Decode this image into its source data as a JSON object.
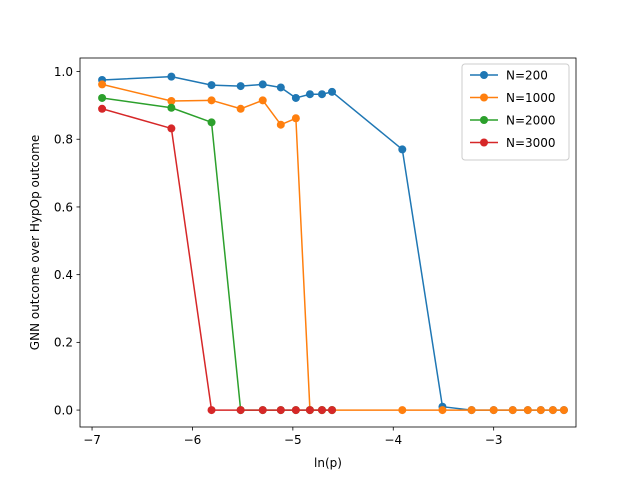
{
  "chart_data": {
    "type": "line",
    "title": "",
    "xlabel": "ln(p)",
    "ylabel": "GNN outcome over HypOp outcome",
    "xlim": [
      -7.12,
      -2.18
    ],
    "ylim": [
      -0.05,
      1.04
    ],
    "x_ticks": [
      -7,
      -6,
      -5,
      -4,
      -3
    ],
    "x_tick_labels": [
      "−7",
      "−6",
      "−5",
      "−4",
      "−3"
    ],
    "y_ticks": [
      0.0,
      0.2,
      0.4,
      0.6,
      0.8,
      1.0
    ],
    "y_tick_labels": [
      "0.0",
      "0.2",
      "0.4",
      "0.6",
      "0.8",
      "1.0"
    ],
    "grid": false,
    "legend_position": "top-right",
    "marker": "circle",
    "series": [
      {
        "name": "N=200",
        "color": "#1f77b4",
        "points": [
          [
            -6.9,
            0.975
          ],
          [
            -6.21,
            0.985
          ],
          [
            -5.81,
            0.96
          ],
          [
            -5.52,
            0.957
          ],
          [
            -5.3,
            0.962
          ],
          [
            -5.12,
            0.953
          ],
          [
            -4.97,
            0.922
          ],
          [
            -4.83,
            0.933
          ],
          [
            -4.71,
            0.933
          ],
          [
            -4.61,
            0.94
          ],
          [
            -3.91,
            0.77
          ],
          [
            -3.51,
            0.01
          ],
          [
            -3.22,
            0.0
          ],
          [
            -3.0,
            0.0
          ],
          [
            -2.81,
            0.0
          ],
          [
            -2.66,
            0.0
          ],
          [
            -2.53,
            0.0
          ],
          [
            -2.41,
            0.0
          ],
          [
            -2.3,
            0.0
          ]
        ]
      },
      {
        "name": "N=1000",
        "color": "#ff7f0e",
        "points": [
          [
            -6.9,
            0.962
          ],
          [
            -6.21,
            0.913
          ],
          [
            -5.81,
            0.915
          ],
          [
            -5.52,
            0.89
          ],
          [
            -5.3,
            0.915
          ],
          [
            -5.12,
            0.843
          ],
          [
            -4.97,
            0.862
          ],
          [
            -4.83,
            0.0
          ],
          [
            -4.71,
            0.0
          ],
          [
            -4.61,
            0.0
          ],
          [
            -3.91,
            0.0
          ],
          [
            -3.51,
            0.0
          ],
          [
            -3.22,
            0.0
          ],
          [
            -3.0,
            0.0
          ],
          [
            -2.81,
            0.0
          ],
          [
            -2.66,
            0.0
          ],
          [
            -2.53,
            0.0
          ],
          [
            -2.41,
            0.0
          ],
          [
            -2.3,
            0.0
          ]
        ]
      },
      {
        "name": "N=2000",
        "color": "#2ca02c",
        "points": [
          [
            -6.9,
            0.922
          ],
          [
            -6.21,
            0.893
          ],
          [
            -5.81,
            0.85
          ],
          [
            -5.52,
            0.0
          ],
          [
            -5.3,
            0.0
          ],
          [
            -5.12,
            0.0
          ],
          [
            -4.97,
            0.0
          ],
          [
            -4.83,
            0.0
          ],
          [
            -4.71,
            0.0
          ],
          [
            -4.61,
            0.0
          ]
        ]
      },
      {
        "name": "N=3000",
        "color": "#d62728",
        "points": [
          [
            -6.9,
            0.89
          ],
          [
            -6.21,
            0.832
          ],
          [
            -5.81,
            0.0
          ],
          [
            -5.52,
            0.0
          ],
          [
            -5.3,
            0.0
          ],
          [
            -5.12,
            0.0
          ],
          [
            -4.97,
            0.0
          ],
          [
            -4.83,
            0.0
          ],
          [
            -4.71,
            0.0
          ],
          [
            -4.61,
            0.0
          ]
        ]
      }
    ]
  }
}
